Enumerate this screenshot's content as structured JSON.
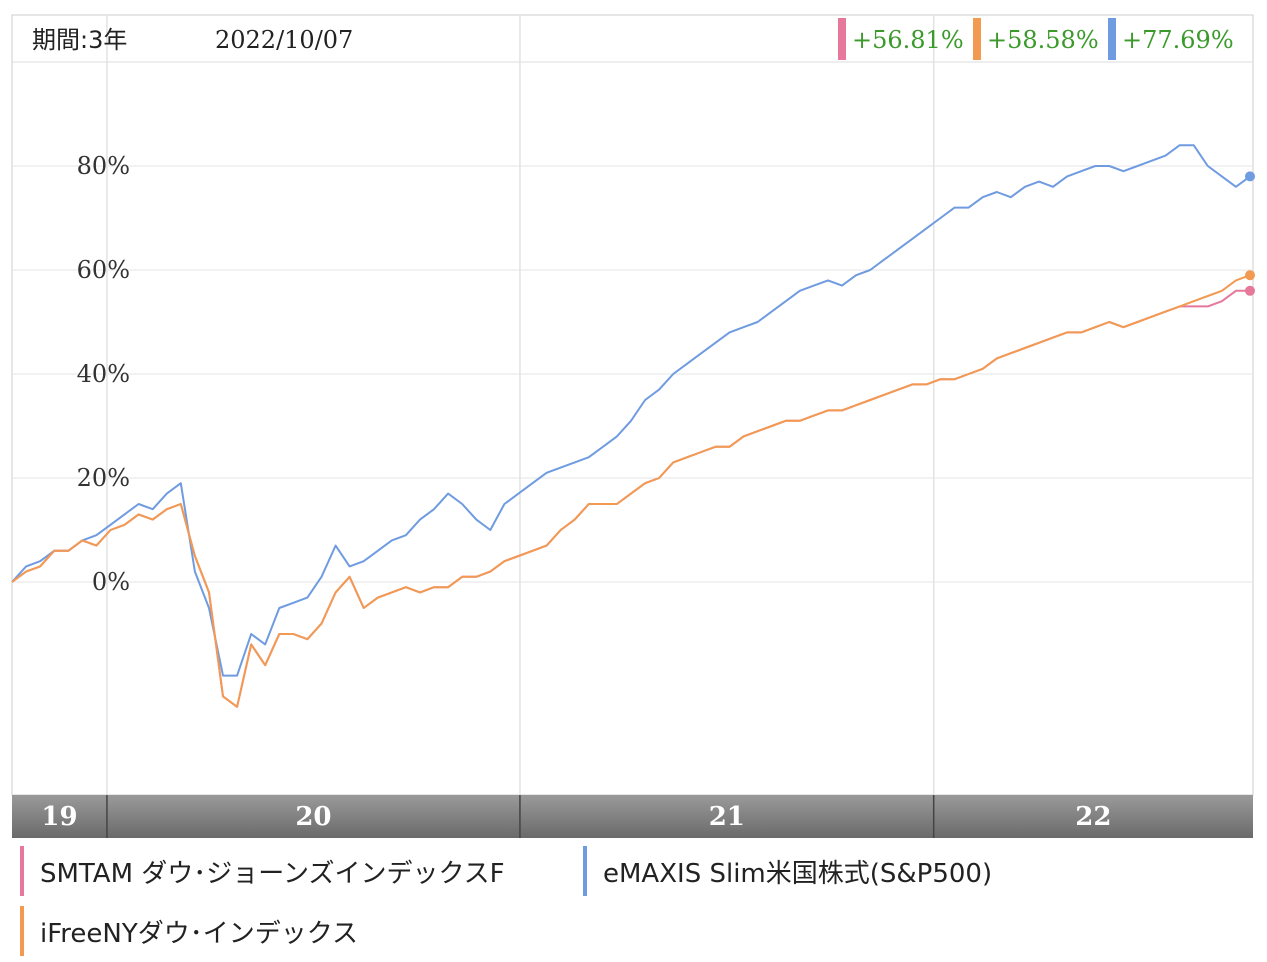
{
  "header": {
    "period_label": "期間:3年",
    "date": "2022/10/07",
    "returns": [
      {
        "value": "+56.81%",
        "color": "#e5789b"
      },
      {
        "value": "+58.58%",
        "color": "#f29a52"
      },
      {
        "value": "+77.69%",
        "color": "#6f9be0"
      }
    ]
  },
  "legend": [
    {
      "label": "SMTAM ダウ･ジョーンズインデックスF",
      "color": "#e5789b"
    },
    {
      "label": "eMAXIS Slim米国株式(S&P500)",
      "color": "#6f9be0"
    },
    {
      "label": "iFreeNYダウ･インデックス",
      "color": "#f29a52"
    }
  ],
  "chart_data": {
    "type": "line",
    "y_ticks": [
      {
        "value": 80,
        "label": "80%"
      },
      {
        "value": 60,
        "label": "60%"
      },
      {
        "value": 40,
        "label": "40%"
      },
      {
        "value": 20,
        "label": "20%"
      },
      {
        "value": 0,
        "label": "0%"
      }
    ],
    "ylim": [
      -40,
      100
    ],
    "x_labels": [
      {
        "label": "19",
        "start": 0,
        "end": 0.0765
      },
      {
        "label": "20",
        "start": 0.0765,
        "end": 0.4093
      },
      {
        "label": "21",
        "start": 0.4093,
        "end": 0.7427
      },
      {
        "label": "22",
        "start": 0.7427,
        "end": 1
      }
    ],
    "return_text_color": "#3a9a2a",
    "grid": true,
    "series": [
      {
        "name": "SMTAM ダウ･ジョーンズインデックスF",
        "color": "#e5789b",
        "values": [
          0,
          2,
          3,
          6,
          6,
          8,
          7,
          10,
          11,
          13,
          12,
          14,
          15,
          5,
          -2,
          -22,
          -24,
          -12,
          -16,
          -10,
          -10,
          -11,
          -8,
          -2,
          1,
          -5,
          -3,
          -2,
          -1,
          -2,
          -1,
          -1,
          1,
          1,
          2,
          4,
          5,
          6,
          7,
          10,
          12,
          15,
          15,
          15,
          17,
          19,
          20,
          23,
          24,
          25,
          26,
          26,
          28,
          29,
          30,
          31,
          31,
          32,
          33,
          33,
          34,
          35,
          36,
          37,
          38,
          38,
          39,
          39,
          40,
          41,
          43,
          44,
          45,
          46,
          47,
          48,
          48,
          49,
          50,
          49,
          50,
          51,
          52,
          53,
          53,
          53,
          54,
          56,
          56
        ]
      },
      {
        "name": "eMAXIS Slim米国株式(S&P500)",
        "color": "#6f9be0",
        "values": [
          0,
          3,
          4,
          6,
          6,
          8,
          9,
          11,
          13,
          15,
          14,
          17,
          19,
          2,
          -5,
          -18,
          -18,
          -10,
          -12,
          -5,
          -4,
          -3,
          1,
          7,
          3,
          4,
          6,
          8,
          9,
          12,
          14,
          17,
          15,
          12,
          10,
          15,
          17,
          19,
          21,
          22,
          23,
          24,
          26,
          28,
          31,
          35,
          37,
          40,
          42,
          44,
          46,
          48,
          49,
          50,
          52,
          54,
          56,
          57,
          58,
          57,
          59,
          60,
          62,
          64,
          66,
          68,
          70,
          72,
          72,
          74,
          75,
          74,
          76,
          77,
          76,
          78,
          79,
          80,
          80,
          79,
          80,
          81,
          82,
          84,
          84,
          80,
          78,
          76,
          78
        ]
      },
      {
        "name": "iFreeNYダウ･インデックス",
        "color": "#f29a52",
        "values": [
          0,
          2,
          3,
          6,
          6,
          8,
          7,
          10,
          11,
          13,
          12,
          14,
          15,
          5,
          -2,
          -22,
          -24,
          -12,
          -16,
          -10,
          -10,
          -11,
          -8,
          -2,
          1,
          -5,
          -3,
          -2,
          -1,
          -2,
          -1,
          -1,
          1,
          1,
          2,
          4,
          5,
          6,
          7,
          10,
          12,
          15,
          15,
          15,
          17,
          19,
          20,
          23,
          24,
          25,
          26,
          26,
          28,
          29,
          30,
          31,
          31,
          32,
          33,
          33,
          34,
          35,
          36,
          37,
          38,
          38,
          39,
          39,
          40,
          41,
          43,
          44,
          45,
          46,
          47,
          48,
          48,
          49,
          50,
          49,
          50,
          51,
          52,
          53,
          54,
          55,
          56,
          58,
          59
        ]
      }
    ]
  }
}
